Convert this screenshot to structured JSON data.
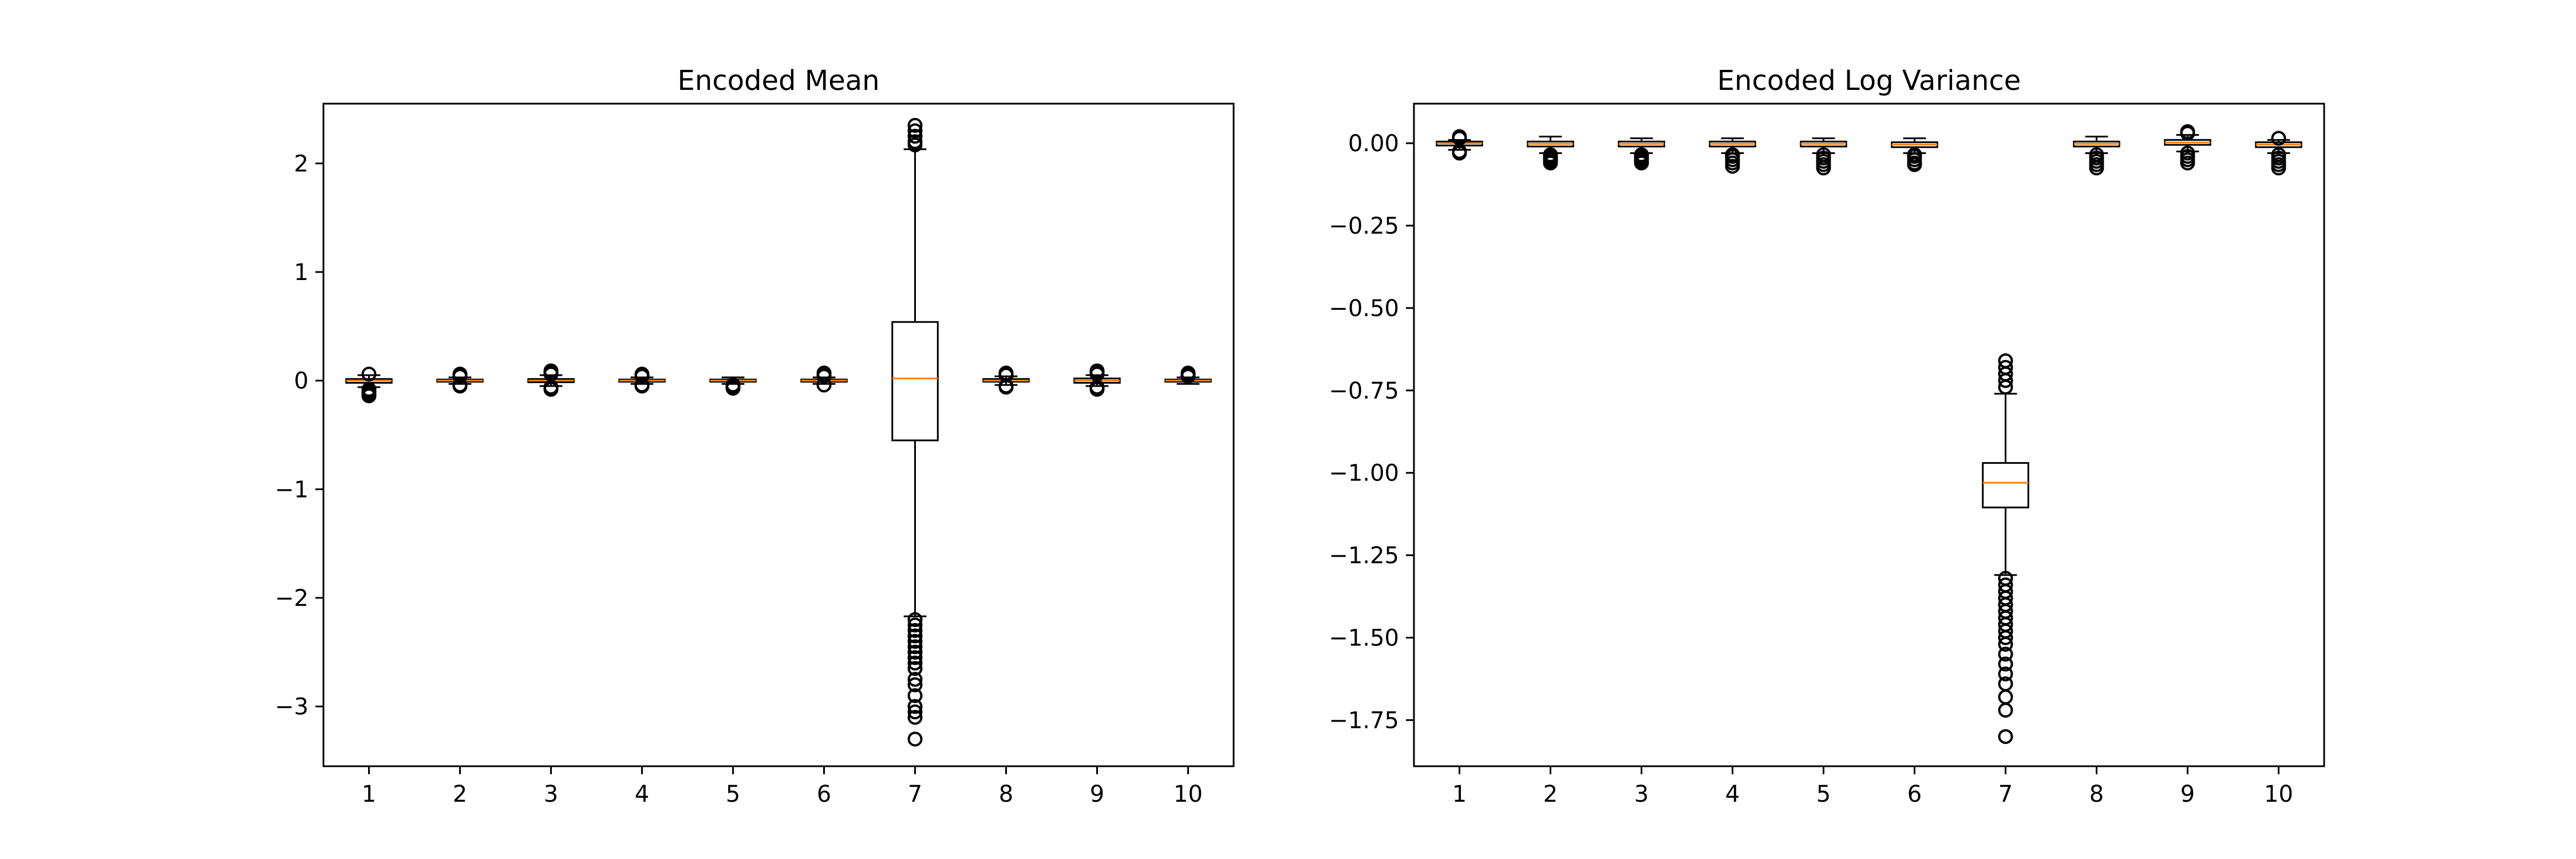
{
  "chart_data": [
    {
      "type": "boxplot",
      "title": "Encoded Mean",
      "xlabel": "",
      "ylabel": "",
      "categories": [
        "1",
        "2",
        "3",
        "4",
        "5",
        "6",
        "7",
        "8",
        "9",
        "10"
      ],
      "ylim": [
        -3.55,
        2.55
      ],
      "yticks": [
        2,
        1,
        0,
        -1,
        -2,
        -3
      ],
      "ytick_labels": [
        "2",
        "1",
        "0",
        "−1",
        "−2",
        "−3"
      ],
      "boxes": [
        {
          "label": "1",
          "q1": -0.02,
          "median": 0.0,
          "q3": 0.015,
          "whislo": -0.06,
          "whishi": 0.05,
          "fliers_low": [
            -0.08,
            -0.1,
            -0.12,
            -0.14
          ],
          "fliers_high": [
            0.06
          ]
        },
        {
          "label": "2",
          "q1": -0.01,
          "median": 0.0,
          "q3": 0.01,
          "whislo": -0.03,
          "whishi": 0.03,
          "fliers_low": [
            -0.04,
            -0.05
          ],
          "fliers_high": [
            0.04,
            0.05,
            0.06
          ]
        },
        {
          "label": "3",
          "q1": -0.015,
          "median": 0.0,
          "q3": 0.015,
          "whislo": -0.05,
          "whishi": 0.05,
          "fliers_low": [
            -0.06,
            -0.08
          ],
          "fliers_high": [
            0.06,
            0.08,
            0.09
          ]
        },
        {
          "label": "4",
          "q1": -0.01,
          "median": 0.0,
          "q3": 0.01,
          "whislo": -0.03,
          "whishi": 0.03,
          "fliers_low": [
            -0.04,
            -0.05
          ],
          "fliers_high": [
            0.04,
            0.05,
            0.06
          ]
        },
        {
          "label": "5",
          "q1": -0.01,
          "median": 0.0,
          "q3": 0.01,
          "whislo": -0.03,
          "whishi": 0.03,
          "fliers_low": [
            -0.04,
            -0.06,
            -0.07
          ],
          "fliers_high": []
        },
        {
          "label": "6",
          "q1": -0.01,
          "median": 0.0,
          "q3": 0.01,
          "whislo": -0.03,
          "whishi": 0.03,
          "fliers_low": [
            -0.04
          ],
          "fliers_high": [
            0.04,
            0.06,
            0.07
          ]
        },
        {
          "label": "7",
          "q1": -0.55,
          "median": 0.02,
          "q3": 0.54,
          "whislo": -2.17,
          "whishi": 2.13,
          "fliers_low": [
            -2.2,
            -2.25,
            -2.3,
            -2.35,
            -2.4,
            -2.45,
            -2.5,
            -2.55,
            -2.6,
            -2.65,
            -2.75,
            -2.8,
            -2.9,
            -3.0,
            -3.05,
            -3.1,
            -3.3
          ],
          "fliers_high": [
            2.17,
            2.2,
            2.25,
            2.3,
            2.35
          ]
        },
        {
          "label": "8",
          "q1": -0.01,
          "median": 0.0,
          "q3": 0.015,
          "whislo": -0.04,
          "whishi": 0.04,
          "fliers_low": [
            -0.05,
            -0.06
          ],
          "fliers_high": [
            0.05,
            0.06,
            0.07
          ]
        },
        {
          "label": "9",
          "q1": -0.02,
          "median": 0.0,
          "q3": 0.02,
          "whislo": -0.05,
          "whishi": 0.05,
          "fliers_low": [
            -0.06,
            -0.08
          ],
          "fliers_high": [
            0.06,
            0.08,
            0.09
          ]
        },
        {
          "label": "10",
          "q1": -0.01,
          "median": 0.0,
          "q3": 0.01,
          "whislo": -0.03,
          "whishi": 0.03,
          "fliers_low": [],
          "fliers_high": [
            0.04,
            0.05,
            0.06,
            0.07
          ]
        }
      ]
    },
    {
      "type": "boxplot",
      "title": "Encoded Log Variance",
      "xlabel": "",
      "ylabel": "",
      "categories": [
        "1",
        "2",
        "3",
        "4",
        "5",
        "6",
        "7",
        "8",
        "9",
        "10"
      ],
      "ylim": [
        -1.89,
        0.12
      ],
      "yticks": [
        0.0,
        -0.25,
        -0.5,
        -0.75,
        -1.0,
        -1.25,
        -1.5,
        -1.75
      ],
      "ytick_labels": [
        "0.00",
        "−0.25",
        "−0.50",
        "−0.75",
        "−1.00",
        "−1.25",
        "−1.50",
        "−1.75"
      ],
      "boxes": [
        {
          "label": "1",
          "q1": -0.007,
          "median": 0.0,
          "q3": 0.005,
          "whislo": -0.02,
          "whishi": 0.01,
          "fliers_low": [
            -0.025,
            -0.03
          ],
          "fliers_high": [
            0.015,
            0.02
          ]
        },
        {
          "label": "2",
          "q1": -0.01,
          "median": -0.002,
          "q3": 0.005,
          "whislo": -0.03,
          "whishi": 0.02,
          "fliers_low": [
            -0.035,
            -0.04,
            -0.045,
            -0.05,
            -0.055,
            -0.06
          ],
          "fliers_high": []
        },
        {
          "label": "3",
          "q1": -0.01,
          "median": -0.002,
          "q3": 0.005,
          "whislo": -0.03,
          "whishi": 0.015,
          "fliers_low": [
            -0.035,
            -0.04,
            -0.045,
            -0.05,
            -0.055,
            -0.06
          ],
          "fliers_high": []
        },
        {
          "label": "4",
          "q1": -0.01,
          "median": -0.002,
          "q3": 0.005,
          "whislo": -0.03,
          "whishi": 0.015,
          "fliers_low": [
            -0.035,
            -0.04,
            -0.05,
            -0.06,
            -0.07
          ],
          "fliers_high": []
        },
        {
          "label": "5",
          "q1": -0.01,
          "median": -0.002,
          "q3": 0.005,
          "whislo": -0.03,
          "whishi": 0.015,
          "fliers_low": [
            -0.035,
            -0.045,
            -0.055,
            -0.065,
            -0.075
          ],
          "fliers_high": []
        },
        {
          "label": "6",
          "q1": -0.012,
          "median": -0.004,
          "q3": 0.003,
          "whislo": -0.03,
          "whishi": 0.015,
          "fliers_low": [
            -0.035,
            -0.04,
            -0.05,
            -0.06,
            -0.065
          ],
          "fliers_high": []
        },
        {
          "label": "7",
          "q1": -1.105,
          "median": -1.03,
          "q3": -0.97,
          "whislo": -1.31,
          "whishi": -0.76,
          "fliers_low": [
            -1.32,
            -1.34,
            -1.36,
            -1.38,
            -1.4,
            -1.42,
            -1.44,
            -1.46,
            -1.48,
            -1.5,
            -1.52,
            -1.55,
            -1.58,
            -1.61,
            -1.64,
            -1.68,
            -1.72,
            -1.8
          ],
          "fliers_high": [
            -0.74,
            -0.72,
            -0.7,
            -0.68,
            -0.66
          ]
        },
        {
          "label": "8",
          "q1": -0.01,
          "median": -0.002,
          "q3": 0.005,
          "whislo": -0.03,
          "whishi": 0.02,
          "fliers_low": [
            -0.035,
            -0.045,
            -0.055,
            -0.065,
            -0.075
          ],
          "fliers_high": []
        },
        {
          "label": "9",
          "q1": -0.005,
          "median": 0.002,
          "q3": 0.01,
          "whislo": -0.025,
          "whishi": 0.025,
          "fliers_low": [
            -0.03,
            -0.04,
            -0.05,
            -0.06
          ],
          "fliers_high": [
            0.03,
            0.035
          ]
        },
        {
          "label": "10",
          "q1": -0.012,
          "median": -0.004,
          "q3": 0.003,
          "whislo": -0.03,
          "whishi": 0.01,
          "fliers_low": [
            -0.035,
            -0.045,
            -0.055,
            -0.065,
            -0.075
          ],
          "fliers_high": [
            0.015
          ]
        }
      ]
    }
  ],
  "colors": {
    "box_edge": "#000000",
    "median": "#ff7f0e",
    "axis": "#000000",
    "background": "#ffffff"
  }
}
